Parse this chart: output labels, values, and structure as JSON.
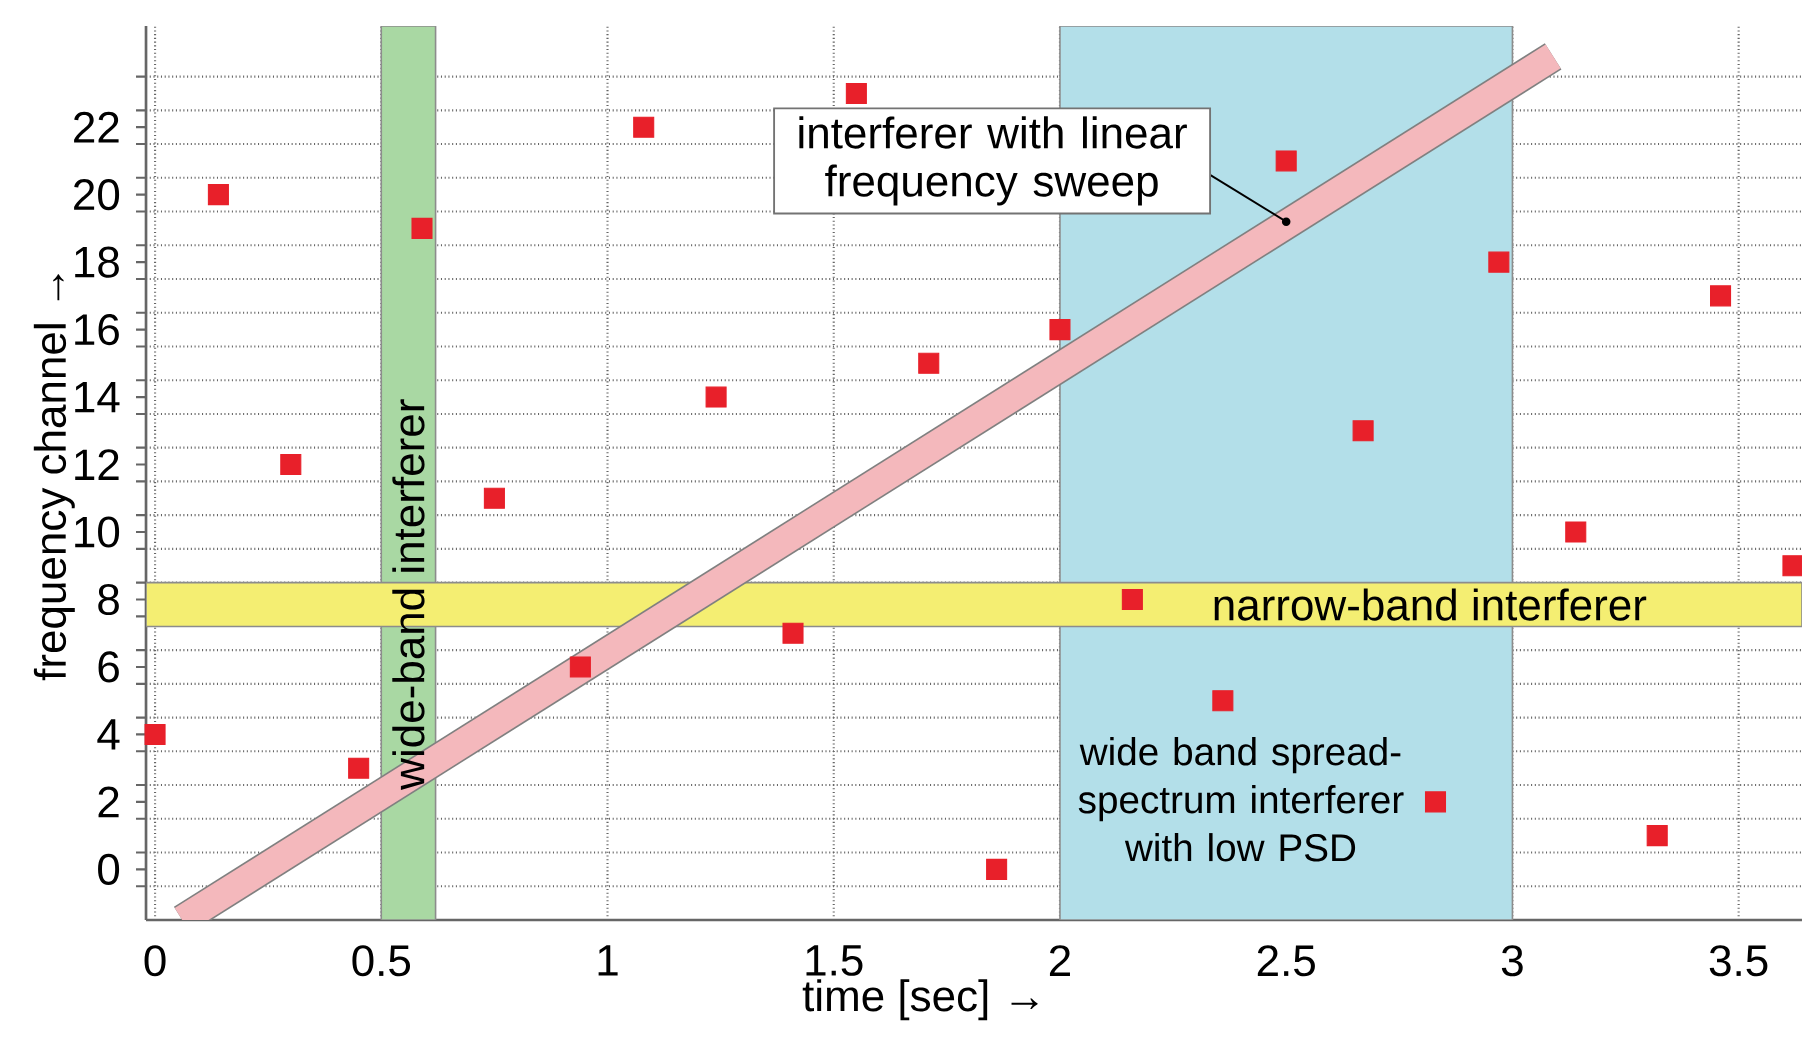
{
  "chart_data": {
    "type": "scatter",
    "xlabel": "time [sec]  →",
    "ylabel": "frequency channel →",
    "xlim": [
      -0.02,
      3.64
    ],
    "ylim": [
      -1.5,
      25
    ],
    "xticks": [
      0,
      0.5,
      1,
      1.5,
      2,
      2.5,
      3,
      3.5
    ],
    "yticks": [
      0,
      2,
      4,
      6,
      8,
      10,
      12,
      14,
      16,
      18,
      20,
      22,
      {
        "value": -0.5,
        "label": null
      },
      {
        "value": 0.5,
        "label": null
      },
      {
        "value": 1.5,
        "label": null
      },
      {
        "value": 2.5,
        "label": null
      },
      {
        "value": 3.5,
        "label": null
      },
      {
        "value": 4.5,
        "label": null
      },
      {
        "value": 5.5,
        "label": null
      },
      {
        "value": 6.5,
        "label": null
      },
      {
        "value": 7.5,
        "label": null
      },
      {
        "value": 8.5,
        "label": null
      },
      {
        "value": 9.5,
        "label": null
      },
      {
        "value": 10.5,
        "label": null
      },
      {
        "value": 11.5,
        "label": null
      },
      {
        "value": 12.5,
        "label": null
      },
      {
        "value": 13.5,
        "label": null
      },
      {
        "value": 14.5,
        "label": null
      },
      {
        "value": 15.5,
        "label": null
      },
      {
        "value": 16.5,
        "label": null
      },
      {
        "value": 17.5,
        "label": null
      },
      {
        "value": 18.5,
        "label": null
      },
      {
        "value": 19.5,
        "label": null
      },
      {
        "value": 20.5,
        "label": null
      },
      {
        "value": 21.5,
        "label": null
      },
      {
        "value": 22.5,
        "label": null
      },
      {
        "value": 23.5,
        "label": null
      }
    ],
    "grid": true,
    "bands": [
      {
        "axis": "x",
        "from": 2,
        "to": 3,
        "label": "wide band spread-spectrum interferer with low PSD",
        "color": "#b3dfe9"
      },
      {
        "axis": "x",
        "from": 0.5,
        "to": 0.62,
        "label": "wide-band interferer",
        "color": "#a9d8a3"
      },
      {
        "axis": "y",
        "from": 7.2,
        "to": 8.5,
        "label": "narrow-band interferer",
        "color": "#f4ee72"
      }
    ],
    "series": [
      {
        "type": "line",
        "color": "#f4b8bc",
        "x": [
          0.06,
          3.09
        ],
        "values": [
          -1.5,
          24.1
        ]
      },
      {
        "marker": "square",
        "color": "#e8202a",
        "x": [
          0.0,
          0.14,
          0.3,
          0.45,
          0.59,
          0.75,
          0.94,
          1.08,
          1.24,
          1.41,
          1.55,
          1.71,
          1.86,
          2.0,
          2.16,
          2.36,
          2.5,
          2.67,
          2.83,
          2.97,
          3.14,
          3.32,
          3.46,
          3.62
        ],
        "values": [
          4,
          20,
          12,
          3,
          19,
          11,
          6,
          22,
          14,
          7,
          23,
          15,
          0,
          16,
          8,
          5,
          21,
          13,
          2,
          18,
          10,
          1,
          17,
          9
        ]
      }
    ],
    "annotations": [
      {
        "text": "interferer with linear frequency sweep",
        "x": 2.5,
        "y": 19.2
      }
    ]
  }
}
